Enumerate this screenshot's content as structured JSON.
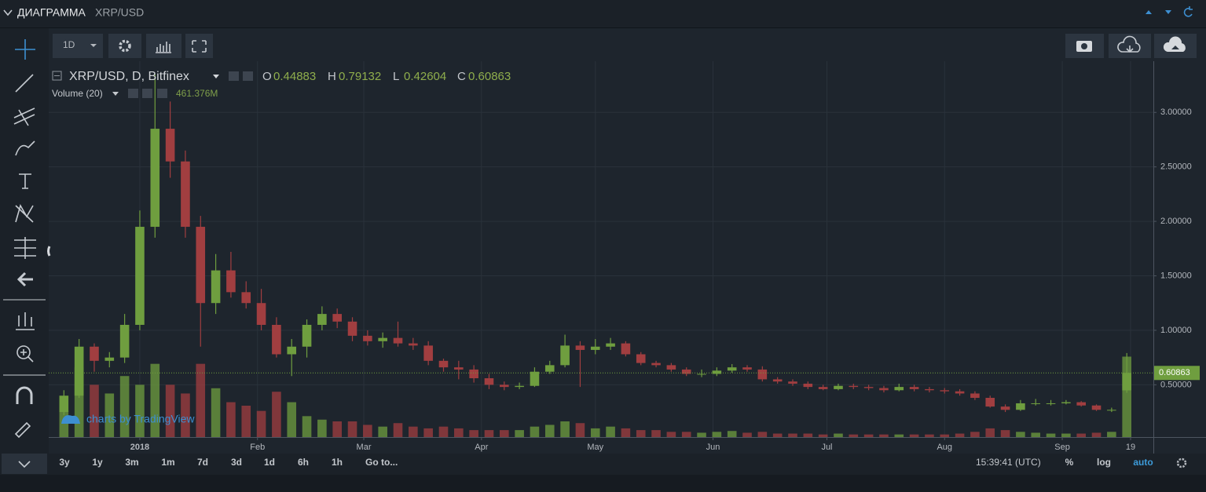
{
  "header": {
    "title": "ДИАГРАММА",
    "symbol": "XRP/USD"
  },
  "toolbar": {
    "interval": "1D"
  },
  "chart_data": {
    "type": "candlestick",
    "title": "XRP/USD, D, Bitfinex",
    "ohlc_labels": [
      "O",
      "H",
      "L",
      "C"
    ],
    "x": [
      -20,
      -16,
      -12,
      -8,
      -4,
      0,
      4,
      8,
      12,
      16,
      20,
      24,
      28,
      32,
      36,
      40,
      44,
      48,
      52,
      56,
      60,
      64,
      68,
      72,
      76,
      80,
      84,
      88,
      92,
      96,
      100,
      104,
      108,
      112,
      116,
      120,
      124,
      128,
      132,
      136,
      140,
      144,
      148,
      152,
      156,
      160,
      164,
      168,
      172,
      176,
      180,
      184,
      188,
      192,
      196,
      200,
      204,
      208,
      212,
      216,
      220,
      224,
      228,
      232,
      236,
      240,
      244,
      248,
      252,
      256,
      260
    ],
    "open": [
      0.25,
      0.4,
      0.85,
      0.72,
      0.75,
      1.05,
      1.95,
      2.85,
      2.55,
      1.95,
      1.25,
      1.55,
      1.35,
      1.25,
      1.05,
      0.78,
      0.85,
      1.05,
      1.15,
      1.08,
      0.95,
      0.9,
      0.93,
      0.88,
      0.86,
      0.72,
      0.66,
      0.64,
      0.56,
      0.5,
      0.48,
      0.49,
      0.62,
      0.68,
      0.86,
      0.82,
      0.85,
      0.88,
      0.78,
      0.7,
      0.68,
      0.64,
      0.6,
      0.6,
      0.63,
      0.66,
      0.64,
      0.55,
      0.53,
      0.51,
      0.48,
      0.46,
      0.49,
      0.48,
      0.47,
      0.45,
      0.48,
      0.46,
      0.45,
      0.44,
      0.42,
      0.38,
      0.3,
      0.27,
      0.33,
      0.33,
      0.33,
      0.34,
      0.31,
      0.27,
      0.44883
    ],
    "high": [
      0.45,
      0.92,
      0.88,
      0.8,
      1.15,
      2.1,
      3.35,
      3.1,
      2.65,
      2.05,
      1.7,
      1.72,
      1.45,
      1.38,
      1.12,
      0.92,
      1.1,
      1.22,
      1.2,
      1.12,
      1.0,
      0.98,
      1.08,
      0.93,
      0.9,
      0.74,
      0.72,
      0.68,
      0.6,
      0.53,
      0.52,
      0.66,
      0.72,
      0.96,
      0.9,
      0.92,
      0.93,
      0.9,
      0.8,
      0.72,
      0.7,
      0.66,
      0.64,
      0.66,
      0.69,
      0.68,
      0.67,
      0.57,
      0.55,
      0.53,
      0.5,
      0.51,
      0.51,
      0.5,
      0.49,
      0.51,
      0.5,
      0.48,
      0.47,
      0.46,
      0.44,
      0.4,
      0.32,
      0.36,
      0.37,
      0.36,
      0.36,
      0.35,
      0.32,
      0.29,
      0.79132
    ],
    "low": [
      0.22,
      0.38,
      0.62,
      0.66,
      0.7,
      1.0,
      1.85,
      2.4,
      1.85,
      0.85,
      1.15,
      1.3,
      1.2,
      1.0,
      0.75,
      0.58,
      0.75,
      1.0,
      1.02,
      0.9,
      0.86,
      0.84,
      0.85,
      0.82,
      0.68,
      0.62,
      0.55,
      0.52,
      0.46,
      0.45,
      0.46,
      0.48,
      0.6,
      0.66,
      0.48,
      0.78,
      0.82,
      0.76,
      0.68,
      0.66,
      0.62,
      0.58,
      0.57,
      0.58,
      0.61,
      0.62,
      0.53,
      0.51,
      0.49,
      0.46,
      0.45,
      0.45,
      0.46,
      0.45,
      0.43,
      0.44,
      0.44,
      0.43,
      0.42,
      0.4,
      0.36,
      0.29,
      0.25,
      0.26,
      0.31,
      0.31,
      0.32,
      0.3,
      0.26,
      0.25,
      0.42604
    ],
    "close": [
      0.4,
      0.85,
      0.72,
      0.75,
      1.05,
      1.95,
      2.85,
      2.55,
      1.95,
      1.25,
      1.55,
      1.35,
      1.25,
      1.05,
      0.78,
      0.85,
      1.05,
      1.15,
      1.08,
      0.95,
      0.9,
      0.93,
      0.88,
      0.86,
      0.72,
      0.66,
      0.64,
      0.56,
      0.5,
      0.48,
      0.49,
      0.62,
      0.68,
      0.86,
      0.82,
      0.85,
      0.88,
      0.78,
      0.7,
      0.68,
      0.64,
      0.6,
      0.6,
      0.63,
      0.66,
      0.64,
      0.55,
      0.53,
      0.51,
      0.48,
      0.46,
      0.49,
      0.48,
      0.47,
      0.45,
      0.48,
      0.46,
      0.45,
      0.44,
      0.42,
      0.38,
      0.3,
      0.27,
      0.33,
      0.33,
      0.33,
      0.34,
      0.31,
      0.27,
      0.27,
      0.60863
    ],
    "up_color": "#6f9e3f",
    "down_color": "#a13e40",
    "xlim": [
      -24,
      267
    ],
    "xticks": [
      {
        "value": 0,
        "label": "2018"
      },
      {
        "value": 31,
        "label": "Feb"
      },
      {
        "value": 59,
        "label": "Mar"
      },
      {
        "value": 90,
        "label": "Apr"
      },
      {
        "value": 120,
        "label": "May"
      },
      {
        "value": 151,
        "label": "Jun"
      },
      {
        "value": 181,
        "label": "Jul"
      },
      {
        "value": 212,
        "label": "Aug"
      },
      {
        "value": 243,
        "label": "Sep"
      },
      {
        "value": 261,
        "label": "19"
      }
    ],
    "ylim": [
      0.02,
      3.47
    ],
    "yticks": [
      {
        "value": 0.5,
        "label": "0.50000"
      },
      {
        "value": 1,
        "label": "1.00000"
      },
      {
        "value": 1.5,
        "label": "1.50000"
      },
      {
        "value": 2,
        "label": "2.00000"
      },
      {
        "value": 2.5,
        "label": "2.50000"
      },
      {
        "value": 3,
        "label": "3.00000"
      }
    ],
    "grid": true,
    "volume": {
      "name": "Volume (20)",
      "ylim": [
        0,
        540
      ],
      "last_label": "461.376M",
      "values": [
        150,
        400,
        300,
        250,
        350,
        300,
        420,
        300,
        250,
        420,
        280,
        200,
        180,
        150,
        260,
        200,
        120,
        100,
        90,
        90,
        70,
        60,
        80,
        60,
        50,
        60,
        50,
        40,
        40,
        40,
        40,
        60,
        70,
        90,
        80,
        50,
        60,
        50,
        40,
        40,
        30,
        30,
        25,
        30,
        35,
        25,
        30,
        20,
        20,
        20,
        15,
        20,
        15,
        15,
        15,
        15,
        15,
        15,
        15,
        20,
        30,
        50,
        40,
        30,
        25,
        20,
        20,
        20,
        25,
        30,
        461.376
      ]
    },
    "watermark": "charts by TradingView"
  },
  "bottom": {
    "ranges": [
      "3y",
      "1y",
      "3m",
      "1m",
      "7d",
      "3d",
      "1d",
      "6h",
      "1h"
    ],
    "goto": "Go to...",
    "time": "15:39:41 (UTC)",
    "options": [
      "%",
      "log",
      "auto"
    ]
  }
}
